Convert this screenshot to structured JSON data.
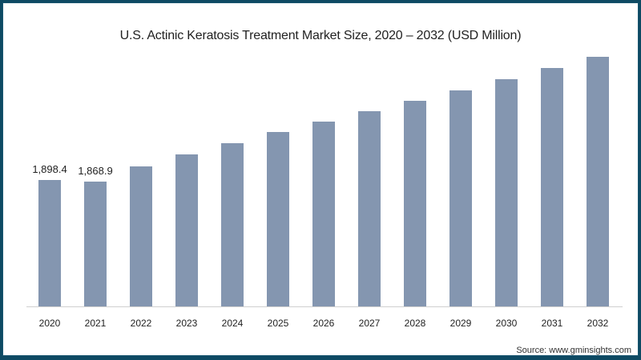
{
  "chart_data": {
    "type": "bar",
    "title": "U.S. Actinic Keratosis Treatment Market Size, 2020 – 2032 (USD Million)",
    "xlabel": "",
    "ylabel": "",
    "categories": [
      "2020",
      "2021",
      "2022",
      "2023",
      "2024",
      "2025",
      "2026",
      "2027",
      "2028",
      "2029",
      "2030",
      "2031",
      "2032"
    ],
    "values": [
      1898.4,
      1868.9,
      2103,
      2283,
      2451,
      2620,
      2776,
      2932,
      3088,
      3244,
      3412,
      3581,
      3749
    ],
    "data_labels": [
      "1,898.4",
      "1,868.9",
      "",
      "",
      "",
      "",
      "",
      "",
      "",
      "",
      "",
      "",
      ""
    ],
    "ylim": [
      0,
      3800
    ],
    "grid": false,
    "legend": null,
    "bar_color": "#8496b0"
  },
  "source": "Source: www.gminsights.com"
}
